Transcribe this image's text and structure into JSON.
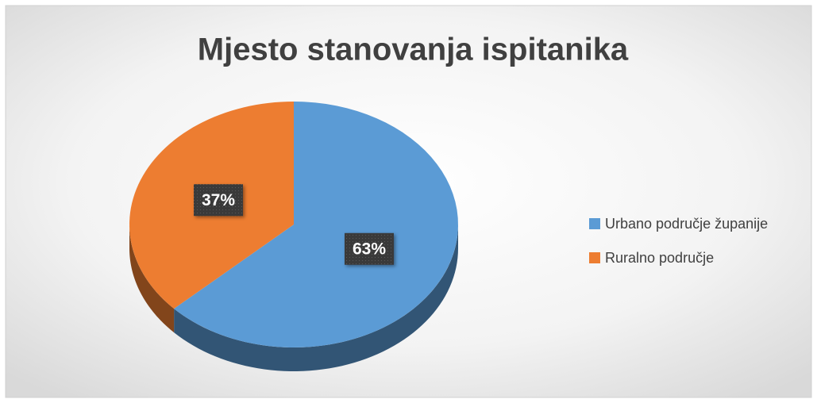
{
  "chart_data": {
    "type": "pie",
    "title": "Mjesto stanovanja ispitanika",
    "categories": [
      "Urbano područje županije",
      "Ruralno područje"
    ],
    "values": [
      63,
      37
    ],
    "value_labels": [
      "63%",
      "37%"
    ],
    "colors": [
      "#5b9bd5",
      "#ed7d31"
    ],
    "legend": "right"
  }
}
